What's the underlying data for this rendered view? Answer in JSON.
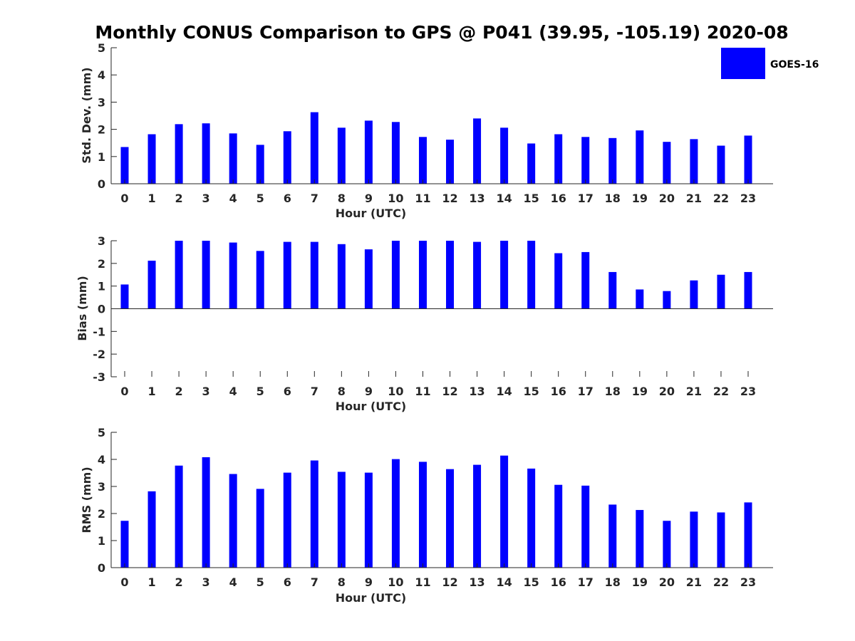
{
  "figure_title": "Monthly CONUS Comparison to GPS @ P041 (39.95, -105.19) 2020-08",
  "legend": {
    "label": "GOES-16",
    "color": "#0000ff"
  },
  "bar_color": "#0000ff",
  "chart_data": [
    {
      "type": "bar",
      "categories": [
        "0",
        "1",
        "2",
        "3",
        "4",
        "5",
        "6",
        "7",
        "8",
        "9",
        "10",
        "11",
        "12",
        "13",
        "14",
        "15",
        "16",
        "17",
        "18",
        "19",
        "20",
        "21",
        "22",
        "23"
      ],
      "series": [
        {
          "name": "GOES-16",
          "values": [
            1.35,
            1.82,
            2.19,
            2.22,
            1.85,
            1.43,
            1.93,
            2.63,
            2.06,
            2.32,
            2.27,
            1.72,
            1.62,
            2.4,
            2.06,
            1.48,
            1.82,
            1.72,
            1.68,
            1.96,
            1.54,
            1.64,
            1.4,
            1.77
          ]
        }
      ],
      "xlabel": "Hour (UTC)",
      "ylabel": "Std. Dev. (mm)",
      "ylim": [
        0,
        5
      ],
      "yticks": [
        "0",
        "1",
        "2",
        "3",
        "4",
        "5"
      ],
      "grid": false,
      "legend_position": "top-right outside"
    },
    {
      "type": "bar",
      "categories": [
        "0",
        "1",
        "2",
        "3",
        "4",
        "5",
        "6",
        "7",
        "8",
        "9",
        "10",
        "11",
        "12",
        "13",
        "14",
        "15",
        "16",
        "17",
        "18",
        "19",
        "20",
        "21",
        "22",
        "23"
      ],
      "series": [
        {
          "name": "GOES-16",
          "values": [
            1.07,
            2.12,
            3.0,
            3.0,
            2.92,
            2.55,
            2.95,
            2.95,
            2.85,
            2.62,
            3.0,
            3.0,
            3.0,
            2.95,
            3.0,
            3.0,
            2.45,
            2.5,
            1.62,
            0.85,
            0.78,
            1.25,
            1.5,
            1.62
          ]
        }
      ],
      "xlabel": "Hour (UTC)",
      "ylabel": "Bias (mm)",
      "ylim": [
        -3,
        3
      ],
      "yticks": [
        "-3",
        "-2",
        "-1",
        "0",
        "1",
        "2",
        "3"
      ],
      "grid": false
    },
    {
      "type": "bar",
      "categories": [
        "0",
        "1",
        "2",
        "3",
        "4",
        "5",
        "6",
        "7",
        "8",
        "9",
        "10",
        "11",
        "12",
        "13",
        "14",
        "15",
        "16",
        "17",
        "18",
        "19",
        "20",
        "21",
        "22",
        "23"
      ],
      "series": [
        {
          "name": "GOES-16",
          "values": [
            1.73,
            2.82,
            3.77,
            4.08,
            3.46,
            2.91,
            3.51,
            3.96,
            3.54,
            3.51,
            4.01,
            3.91,
            3.64,
            3.8,
            4.14,
            3.66,
            3.06,
            3.03,
            2.33,
            2.13,
            1.73,
            2.07,
            2.04,
            2.41
          ]
        }
      ],
      "xlabel": "Hour (UTC)",
      "ylabel": "RMS (mm)",
      "ylim": [
        0,
        5
      ],
      "yticks": [
        "0",
        "1",
        "2",
        "3",
        "4",
        "5"
      ],
      "grid": false
    }
  ]
}
